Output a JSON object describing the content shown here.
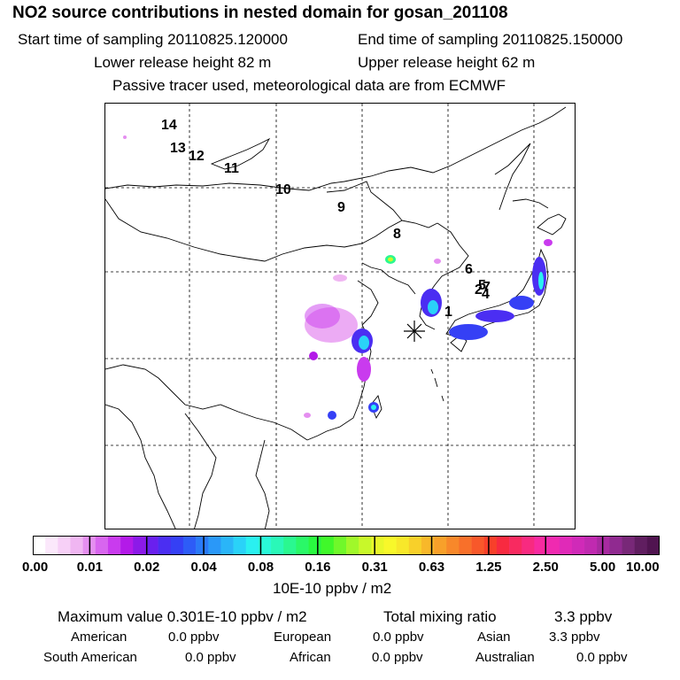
{
  "chart_data": {
    "type": "heatmap",
    "title": "NO2 source contributions in nested domain for gosan_201108",
    "subtitle_lines": {
      "start_label": "Start time of sampling 20110825.120000",
      "end_label": "End time of sampling 20110825.150000",
      "lower_label": "Lower release height   82 m",
      "upper_label": "Upper release height   62 m",
      "tracer_label": "Passive tracer used, meteorological data are from ECMWF"
    },
    "trajectory_labels": [
      "1",
      "2",
      "4",
      "5",
      "6",
      "7",
      "8",
      "9",
      "10",
      "11",
      "12",
      "13",
      "14"
    ],
    "colorbar": {
      "tick_labels": [
        "0.00",
        "0.01",
        "0.02",
        "0.04",
        "0.08",
        "0.16",
        "0.31",
        "0.63",
        "1.25",
        "2.50",
        "5.00",
        "10.00"
      ],
      "unit": "10E-10 ppbv / m2",
      "colors": [
        "#ffffff",
        "#fbe8fb",
        "#f7d0f7",
        "#f0b6f2",
        "#e58ff0",
        "#d866ef",
        "#c93bee",
        "#b31ae8",
        "#8c1ae8",
        "#6a20ee",
        "#4b2ef2",
        "#3540f5",
        "#2d5cf7",
        "#2a7af8",
        "#2a98f8",
        "#2ab5f8",
        "#2ad2f8",
        "#2af0f0",
        "#2af8d8",
        "#2af8b8",
        "#2af890",
        "#2af868",
        "#2af840",
        "#40f82a",
        "#70f82a",
        "#a0f82a",
        "#c8f82a",
        "#e8f82a",
        "#f8f82a",
        "#f8e82a",
        "#f8d02a",
        "#f8b82a",
        "#f8a02a",
        "#f8882a",
        "#f8702a",
        "#f8582a",
        "#f8402a",
        "#f82a40",
        "#f82a60",
        "#f82a80",
        "#f82aa0",
        "#f02ab0",
        "#e02ab8",
        "#d02ab8",
        "#c02ab0",
        "#a82aa0",
        "#902a90",
        "#782878",
        "#601e60",
        "#501450"
      ]
    },
    "stats": {
      "max_label": "Maximum value  0.301E-10 ppbv / m2",
      "total_label": "Total mixing ratio",
      "total_value": "3.3 ppbv"
    },
    "regions": [
      {
        "name": "American",
        "value": "0.0 ppbv"
      },
      {
        "name": "European",
        "value": "0.0 ppbv"
      },
      {
        "name": "Asian",
        "value": "3.3 ppbv"
      },
      {
        "name": "South American",
        "value": "0.0 ppbv"
      },
      {
        "name": "African",
        "value": "0.0 ppbv"
      },
      {
        "name": "Australian",
        "value": "0.0 ppbv"
      }
    ]
  }
}
